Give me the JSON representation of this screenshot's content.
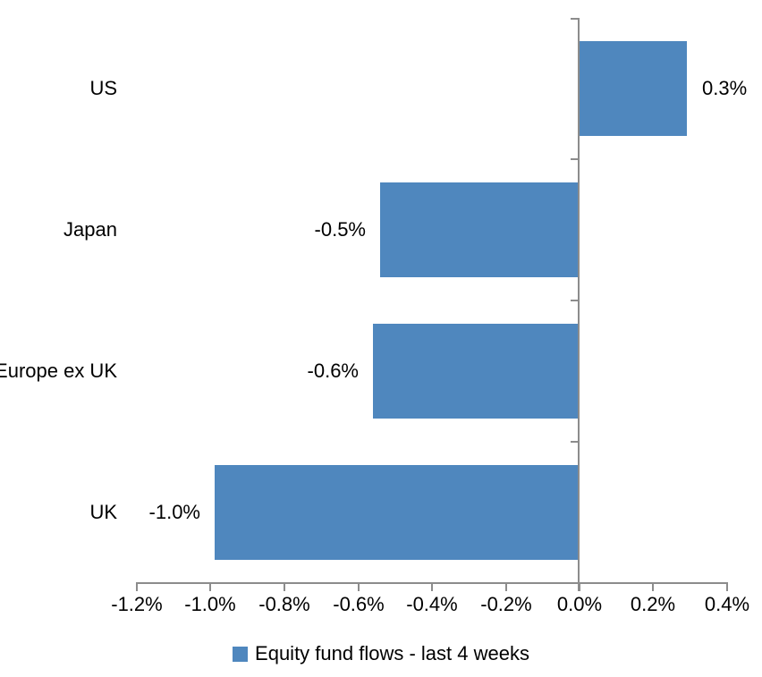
{
  "chart_data": {
    "type": "bar",
    "orientation": "horizontal",
    "title": "",
    "xlabel": "",
    "ylabel": "",
    "categories": [
      "US",
      "Japan",
      "Europe ex UK",
      "UK"
    ],
    "series": [
      {
        "name": "Equity fund flows - last 4 weeks",
        "values": [
          0.29,
          -0.54,
          -0.56,
          -0.99
        ],
        "data_labels": [
          "0.3%",
          "-0.5%",
          "-0.6%",
          "-1.0%"
        ]
      }
    ],
    "xlim": [
      -1.2,
      0.4
    ],
    "x_tick_values": [
      -1.2,
      -1.0,
      -0.8,
      -0.6,
      -0.4,
      -0.2,
      0.0,
      0.2,
      0.4
    ],
    "x_tick_labels": [
      "-1.2%",
      "-1.0%",
      "-0.8%",
      "-0.6%",
      "-0.4%",
      "-0.2%",
      "0.0%",
      "0.2%",
      "0.4%"
    ],
    "grid": false,
    "legend_position": "bottom",
    "colors": {
      "bar": "#4F87BE",
      "axis": "#8C8C8C",
      "text": "#000000",
      "background": "#FFFFFF"
    }
  }
}
